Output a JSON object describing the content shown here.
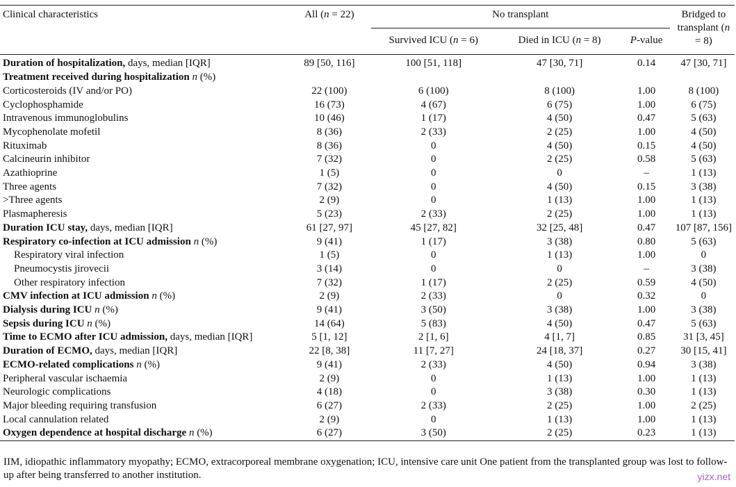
{
  "header": {
    "clinical": "Clinical characteristics",
    "all": "All (n = 22)",
    "no_transplant": "No transplant",
    "survived": "Survived ICU (n = 6)",
    "died": "Died in ICU (n = 8)",
    "pvalue": "P-value",
    "bridged": "Bridged to transplant (n = 8)"
  },
  "rows": [
    {
      "b": "Duration of hospitalization,",
      "t": " days, median [IQR]",
      "v": [
        "89 [50, 116]",
        "100 [51, 118]",
        "47 [30, 71]",
        "0.14",
        "47 [30, 71]"
      ]
    },
    {
      "b": "Treatment received during hospitalization",
      "t": " n (%)",
      "v": [
        "",
        "",
        "",
        "",
        ""
      ]
    },
    {
      "b": "",
      "t": "Corticosteroids (IV and/or PO)",
      "v": [
        "22 (100)",
        "6 (100)",
        "8 (100)",
        "1.00",
        "8 (100)"
      ]
    },
    {
      "b": "",
      "t": "Cyclophosphamide",
      "v": [
        "16 (73)",
        "4 (67)",
        "6 (75)",
        "1.00",
        "6 (75)"
      ]
    },
    {
      "b": "",
      "t": "Intravenous immunoglobulins",
      "v": [
        "10 (46)",
        "1 (17)",
        "4 (50)",
        "0.47",
        "5 (63)"
      ]
    },
    {
      "b": "",
      "t": "Mycophenolate mofetil",
      "v": [
        "8 (36)",
        "2 (33)",
        "2 (25)",
        "1.00",
        "4 (50)"
      ]
    },
    {
      "b": "",
      "t": "Rituximab",
      "v": [
        "8 (36)",
        "0",
        "4 (50)",
        "0.15",
        "4 (50)"
      ]
    },
    {
      "b": "",
      "t": "Calcineurin inhibitor",
      "v": [
        "7 (32)",
        "0",
        "2 (25)",
        "0.58",
        "5 (63)"
      ]
    },
    {
      "b": "",
      "t": "Azathioprine",
      "v": [
        "1 (5)",
        "0",
        "0",
        "–",
        "1 (13)"
      ]
    },
    {
      "b": "",
      "t": "Three agents",
      "v": [
        "7 (32)",
        "0",
        "4 (50)",
        "0.15",
        "3 (38)"
      ]
    },
    {
      "b": "",
      "t": ">Three agents",
      "v": [
        "2 (9)",
        "0",
        "1 (13)",
        "1.00",
        "1 (13)"
      ]
    },
    {
      "b": "",
      "t": "Plasmapheresis",
      "v": [
        "5 (23)",
        "2 (33)",
        "2 (25)",
        "1.00",
        "1 (13)"
      ]
    },
    {
      "b": "Duration ICU stay,",
      "t": " days, median [IQR]",
      "v": [
        "61 [27, 97]",
        "45 [27, 82]",
        "32 [25, 48]",
        "0.47",
        "107 [87, 156]"
      ]
    },
    {
      "b": "Respiratory co-infection at ICU admission",
      "t": " n (%)",
      "v": [
        "9 (41)",
        "1 (17)",
        "3 (38)",
        "0.80",
        "5 (63)"
      ]
    },
    {
      "b": "",
      "t": "Respiratory viral infection",
      "ind": true,
      "v": [
        "1 (5)",
        "0",
        "1 (13)",
        "1.00",
        "0"
      ]
    },
    {
      "b": "",
      "t": "Pneumocystis jirovecii",
      "ind": true,
      "v": [
        "3 (14)",
        "0",
        "0",
        "–",
        "3 (38)"
      ]
    },
    {
      "b": "",
      "t": "Other respiratory infection",
      "ind": true,
      "v": [
        "7 (32)",
        "1 (17)",
        "2 (25)",
        "0.59",
        "4 (50)"
      ]
    },
    {
      "b": "CMV infection at ICU admission",
      "t": " n (%)",
      "v": [
        "2 (9)",
        "2 (33)",
        "0",
        "0.32",
        "0"
      ]
    },
    {
      "b": "Dialysis during ICU",
      "t": " n (%)",
      "v": [
        "9 (41)",
        "3 (50)",
        "3 (38)",
        "1.00",
        "3 (38)"
      ]
    },
    {
      "b": "Sepsis during ICU",
      "t": " n (%)",
      "v": [
        "14 (64)",
        "5 (83)",
        "4 (50)",
        "0.47",
        "5 (63)"
      ]
    },
    {
      "b": "Time to ECMO after ICU admission,",
      "t": " days, median [IQR]",
      "v": [
        "5 [1, 12]",
        "2 [1, 6]",
        "4 [1, 7]",
        "0.85",
        "31 [3, 45]"
      ]
    },
    {
      "b": "Duration of ECMO,",
      "t": " days, median [IQR]",
      "v": [
        "22 [8, 38]",
        "11 [7, 27]",
        "24 [18, 37]",
        "0.27",
        "30 [15, 41]"
      ]
    },
    {
      "b": "ECMO-related complications",
      "t": " n (%)",
      "v": [
        "9 (41)",
        "2 (33)",
        "4 (50)",
        "0.94",
        "3 (38)"
      ]
    },
    {
      "b": "",
      "t": "Peripheral vascular ischaemia",
      "v": [
        "2 (9)",
        "0",
        "1 (13)",
        "1.00",
        "1 (13)"
      ]
    },
    {
      "b": "",
      "t": "Neurologic complications",
      "v": [
        "4 (18)",
        "0",
        "3 (38)",
        "0.30",
        "1 (13)"
      ]
    },
    {
      "b": "",
      "t": "Major bleeding requiring transfusion",
      "v": [
        "6 (27)",
        "2 (33)",
        "2 (25)",
        "1.00",
        "2 (25)"
      ]
    },
    {
      "b": "",
      "t": "Local cannulation related",
      "v": [
        "2 (9)",
        "0",
        "1 (13)",
        "1.00",
        "1 (13)"
      ]
    },
    {
      "b": "Oxygen dependence at hospital discharge",
      "t": " n (%)",
      "v": [
        "6 (27)",
        "3 (50)",
        "2 (25)",
        "0.23",
        "1 (13)"
      ]
    }
  ],
  "footnote": "IIM, idiopathic inflammatory myopathy; ECMO, extracorporeal membrane oxygenation; ICU, intensive care unit One patient from the transplanted group was lost to follow-up after being transferred to another institution.",
  "watermark": "yizx.net"
}
